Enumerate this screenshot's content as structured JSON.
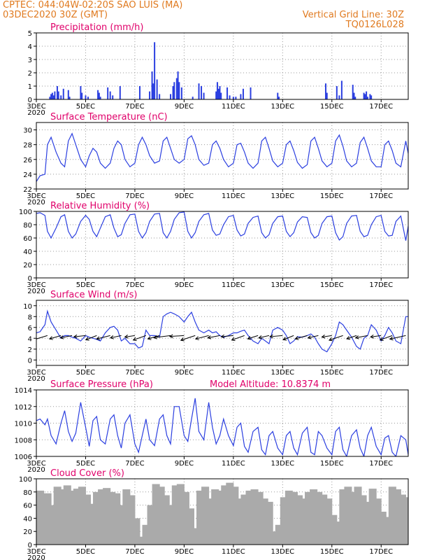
{
  "header": {
    "line1_left": "CPTEC:    044:04W-02:20S   SAO LUIS (MA)",
    "line2_left": "03DEC2020 30Z (GMT)",
    "line2_right": "Vertical Grid Line: 30Z",
    "line3_right": "TQ0126L028"
  },
  "colors": {
    "header": "#e07a1f",
    "panel_title": "#e0006a",
    "line": "#2b3fe0",
    "cloud_bar": "#aaaaaa",
    "wind_arrow": "#000000"
  },
  "x_axis": {
    "tick_labels": [
      "3DEC",
      "5DEC",
      "7DEC",
      "9DEC",
      "11DEC",
      "13DEC",
      "15DEC",
      "17DEC"
    ],
    "year_label": "2020"
  },
  "chart_data": [
    {
      "id": "precip",
      "type": "bar",
      "title": "Precipitation (mm/h)",
      "ylim": [
        0,
        5
      ],
      "yticks": [
        "0",
        "1",
        "2",
        "3",
        "4",
        "5"
      ],
      "xlim_days": [
        3,
        18.1
      ],
      "grid": true,
      "x": [
        3.55,
        3.6,
        3.65,
        3.7,
        3.75,
        3.85,
        3.9,
        4.0,
        4.1,
        4.3,
        4.35,
        4.8,
        4.85,
        5.0,
        5.1,
        5.5,
        5.55,
        5.6,
        5.9,
        6.0,
        6.1,
        6.4,
        7.2,
        7.6,
        7.7,
        7.75,
        7.8,
        7.9,
        8.0,
        8.45,
        8.55,
        8.6,
        8.7,
        8.75,
        8.8,
        8.9,
        9.35,
        9.6,
        9.7,
        9.8,
        10.3,
        10.35,
        10.4,
        10.45,
        10.5,
        10.75,
        10.85,
        11.0,
        11.1,
        11.3,
        11.4,
        11.7,
        12.8,
        12.85,
        14.75,
        14.8,
        15.2,
        15.3,
        15.4,
        15.85,
        15.9,
        15.95,
        16.3,
        16.35,
        16.4,
        16.45,
        16.55,
        16.6
      ],
      "values": [
        0.2,
        0.4,
        0.5,
        0.3,
        0.6,
        1.0,
        0.6,
        0.3,
        0.8,
        0.7,
        0.2,
        1.0,
        0.5,
        0.3,
        0.2,
        0.7,
        0.5,
        0.2,
        0.9,
        0.6,
        0.3,
        1.0,
        1.0,
        0.6,
        2.1,
        1.2,
        4.3,
        1.5,
        0.4,
        0.4,
        1.0,
        1.3,
        1.6,
        2.1,
        1.3,
        0.9,
        0.2,
        1.2,
        1.0,
        0.5,
        0.6,
        1.3,
        0.8,
        1.0,
        0.5,
        0.9,
        0.3,
        0.2,
        0.2,
        0.4,
        0.8,
        0.9,
        0.5,
        0.2,
        1.2,
        0.5,
        1.0,
        0.3,
        1.4,
        1.1,
        0.5,
        0.2,
        0.5,
        0.4,
        0.6,
        0.2,
        0.4,
        0.3
      ]
    },
    {
      "id": "temp",
      "type": "line",
      "title": "Surface Temperature (nC)",
      "ylim": [
        22,
        31
      ],
      "yticks": [
        "22",
        "24",
        "26",
        "28",
        "30"
      ],
      "xlim_days": [
        3,
        18.1
      ],
      "grid": true,
      "x": [
        3,
        3.15,
        3.35,
        3.45,
        3.6,
        3.8,
        4.0,
        4.15,
        4.3,
        4.45,
        4.6,
        4.8,
        5.0,
        5.15,
        5.3,
        5.45,
        5.6,
        5.8,
        6.0,
        6.15,
        6.3,
        6.45,
        6.6,
        6.8,
        7.0,
        7.15,
        7.3,
        7.45,
        7.6,
        7.8,
        8.0,
        8.15,
        8.3,
        8.45,
        8.6,
        8.8,
        9.0,
        9.15,
        9.3,
        9.45,
        9.6,
        9.8,
        10.0,
        10.15,
        10.3,
        10.45,
        10.6,
        10.8,
        11.0,
        11.15,
        11.3,
        11.45,
        11.6,
        11.8,
        12.0,
        12.15,
        12.3,
        12.45,
        12.6,
        12.8,
        13.0,
        13.15,
        13.3,
        13.45,
        13.6,
        13.8,
        14.0,
        14.15,
        14.3,
        14.45,
        14.6,
        14.8,
        15.0,
        15.15,
        15.3,
        15.45,
        15.6,
        15.8,
        16.0,
        16.15,
        16.3,
        16.45,
        16.6,
        16.8,
        17.0,
        17.15,
        17.3,
        17.45,
        17.6,
        17.8,
        18.0,
        18.1
      ],
      "values": [
        23.0,
        23.8,
        24.0,
        28.0,
        29.0,
        27.0,
        25.5,
        25.0,
        28.5,
        29.5,
        28.0,
        26.0,
        25.0,
        26.5,
        27.5,
        27.0,
        25.5,
        24.8,
        25.5,
        27.5,
        28.5,
        28.0,
        26.0,
        25.0,
        25.5,
        28.0,
        29.0,
        28.0,
        26.5,
        25.5,
        25.8,
        28.5,
        29.0,
        27.5,
        26.0,
        25.5,
        26.0,
        28.8,
        29.2,
        28.0,
        26.0,
        25.2,
        25.5,
        28.0,
        28.5,
        27.5,
        26.0,
        25.0,
        25.5,
        28.0,
        28.2,
        27.0,
        25.5,
        24.8,
        25.5,
        28.5,
        29.0,
        27.5,
        25.8,
        25.0,
        25.5,
        28.0,
        28.5,
        27.2,
        25.6,
        24.8,
        25.3,
        28.5,
        29.0,
        27.5,
        25.8,
        25.0,
        25.5,
        28.5,
        29.3,
        27.8,
        25.8,
        25.0,
        25.5,
        28.3,
        29.0,
        27.5,
        25.8,
        25.0,
        25.0,
        28.0,
        28.5,
        27.2,
        25.5,
        25.0,
        28.5,
        26.8
      ]
    },
    {
      "id": "rh",
      "type": "line",
      "title": "Relative Humidity (%)",
      "ylim": [
        0,
        100
      ],
      "yticks": [
        "0",
        "20",
        "40",
        "60",
        "80",
        "100"
      ],
      "xlim_days": [
        3,
        18.1
      ],
      "grid": true,
      "x": [
        3,
        3.15,
        3.35,
        3.45,
        3.6,
        3.8,
        4.0,
        4.15,
        4.3,
        4.45,
        4.6,
        4.8,
        5.0,
        5.15,
        5.3,
        5.45,
        5.6,
        5.8,
        6.0,
        6.15,
        6.3,
        6.45,
        6.6,
        6.8,
        7.0,
        7.15,
        7.3,
        7.45,
        7.6,
        7.8,
        8.0,
        8.15,
        8.3,
        8.45,
        8.6,
        8.8,
        9.0,
        9.15,
        9.3,
        9.45,
        9.6,
        9.8,
        10.0,
        10.15,
        10.3,
        10.45,
        10.6,
        10.8,
        11.0,
        11.15,
        11.3,
        11.45,
        11.6,
        11.8,
        12.0,
        12.15,
        12.3,
        12.45,
        12.6,
        12.8,
        13.0,
        13.15,
        13.3,
        13.45,
        13.6,
        13.8,
        14.0,
        14.15,
        14.3,
        14.45,
        14.6,
        14.8,
        15.0,
        15.15,
        15.3,
        15.45,
        15.6,
        15.8,
        16.0,
        16.15,
        16.3,
        16.45,
        16.6,
        16.8,
        17.0,
        17.15,
        17.3,
        17.45,
        17.6,
        17.8,
        18.0,
        18.1
      ],
      "values": [
        97,
        98,
        94,
        70,
        60,
        75,
        92,
        95,
        70,
        60,
        66,
        85,
        94,
        88,
        70,
        62,
        75,
        92,
        95,
        75,
        62,
        65,
        82,
        95,
        96,
        70,
        60,
        68,
        85,
        96,
        97,
        68,
        60,
        70,
        88,
        98,
        99,
        70,
        60,
        68,
        85,
        95,
        97,
        72,
        64,
        66,
        80,
        92,
        94,
        72,
        63,
        66,
        82,
        91,
        93,
        68,
        60,
        65,
        82,
        92,
        93,
        70,
        62,
        68,
        84,
        92,
        91,
        68,
        60,
        64,
        82,
        92,
        93,
        68,
        57,
        62,
        82,
        93,
        94,
        70,
        62,
        64,
        80,
        92,
        94,
        70,
        63,
        64,
        85,
        93,
        56,
        78
      ]
    },
    {
      "id": "wind",
      "type": "line",
      "title": "Surface Wind (m/s)",
      "ylim": [
        -1,
        11
      ],
      "yticks": [
        "0",
        "2",
        "4",
        "6",
        "8",
        "10"
      ],
      "xlim_days": [
        3,
        18.1
      ],
      "grid": true,
      "x": [
        3,
        3.15,
        3.35,
        3.45,
        3.6,
        3.8,
        4.0,
        4.15,
        4.3,
        4.45,
        4.6,
        4.8,
        5.0,
        5.15,
        5.3,
        5.45,
        5.6,
        5.8,
        6.0,
        6.15,
        6.3,
        6.45,
        6.6,
        6.8,
        7.0,
        7.15,
        7.3,
        7.45,
        7.6,
        7.8,
        8.0,
        8.15,
        8.3,
        8.45,
        8.6,
        8.8,
        9.0,
        9.15,
        9.3,
        9.45,
        9.6,
        9.8,
        10.0,
        10.15,
        10.3,
        10.45,
        10.6,
        10.8,
        11.0,
        11.15,
        11.3,
        11.45,
        11.6,
        11.8,
        12.0,
        12.15,
        12.3,
        12.45,
        12.6,
        12.8,
        13.0,
        13.15,
        13.3,
        13.45,
        13.6,
        13.8,
        14.0,
        14.15,
        14.3,
        14.45,
        14.6,
        14.8,
        15.0,
        15.15,
        15.3,
        15.45,
        15.6,
        15.8,
        16.0,
        16.15,
        16.3,
        16.45,
        16.6,
        16.8,
        17.0,
        17.15,
        17.3,
        17.45,
        17.6,
        17.8,
        18.0,
        18.1
      ],
      "values": [
        5,
        5.2,
        6.5,
        9,
        7,
        5.5,
        4,
        4.5,
        4.5,
        4.2,
        4,
        3.5,
        4.5,
        4.2,
        4,
        3.8,
        3.5,
        5,
        6,
        6.2,
        5.5,
        3.5,
        4,
        3,
        3,
        2.2,
        2.5,
        5.5,
        4.5,
        4.5,
        4.2,
        8,
        8.5,
        8.8,
        8.5,
        8,
        7,
        8,
        8.8,
        7,
        5.5,
        5,
        5.5,
        5,
        5.2,
        4.5,
        4.2,
        4.5,
        5,
        5,
        5.3,
        5.5,
        4.5,
        3.5,
        3,
        4,
        3.5,
        3,
        5.5,
        6,
        5.5,
        4.5,
        3,
        3.5,
        4.3,
        4.2,
        4.5,
        4.8,
        4.2,
        3,
        2,
        1.5,
        3,
        4.5,
        7,
        6.5,
        5.5,
        4.2,
        2.5,
        2,
        4,
        4.5,
        6.5,
        5.5,
        3.5,
        4.5,
        6,
        5,
        3.5,
        3,
        8,
        8
      ]
    },
    {
      "id": "pressure",
      "type": "line",
      "title": "Surface Pressure (hPa)",
      "annotation": "Model Altitude: 10.8374 m",
      "ylim": [
        1006,
        1014
      ],
      "yticks": [
        "1006",
        "1008",
        "1010",
        "1012",
        "1014"
      ],
      "xlim_days": [
        3,
        18.1
      ],
      "grid": true,
      "x": [
        3,
        3.15,
        3.35,
        3.45,
        3.6,
        3.8,
        4.0,
        4.15,
        4.3,
        4.45,
        4.6,
        4.8,
        5.0,
        5.15,
        5.3,
        5.45,
        5.6,
        5.8,
        6.0,
        6.15,
        6.3,
        6.45,
        6.6,
        6.8,
        7.0,
        7.15,
        7.3,
        7.45,
        7.6,
        7.8,
        8.0,
        8.15,
        8.3,
        8.45,
        8.6,
        8.8,
        9.0,
        9.15,
        9.3,
        9.45,
        9.6,
        9.8,
        10.0,
        10.15,
        10.3,
        10.45,
        10.6,
        10.8,
        11.0,
        11.15,
        11.3,
        11.45,
        11.6,
        11.8,
        12.0,
        12.15,
        12.3,
        12.45,
        12.6,
        12.8,
        13.0,
        13.15,
        13.3,
        13.45,
        13.6,
        13.8,
        14.0,
        14.15,
        14.3,
        14.45,
        14.6,
        14.8,
        15.0,
        15.15,
        15.3,
        15.45,
        15.6,
        15.8,
        16.0,
        16.15,
        16.3,
        16.45,
        16.6,
        16.8,
        17.0,
        17.15,
        17.3,
        17.45,
        17.6,
        17.8,
        18.0,
        18.1
      ],
      "values": [
        1010.3,
        1010.5,
        1009.8,
        1010.5,
        1008.5,
        1007.5,
        1010,
        1011.5,
        1009,
        1007.8,
        1008.8,
        1012.5,
        1009.5,
        1007.2,
        1010.3,
        1010.8,
        1008,
        1007.5,
        1010.5,
        1011,
        1008.5,
        1007,
        1010,
        1011,
        1007.5,
        1006.5,
        1008.5,
        1010.5,
        1008,
        1007.3,
        1010.5,
        1011,
        1008.5,
        1007.5,
        1012,
        1012,
        1008.5,
        1007.8,
        1010.5,
        1013,
        1009,
        1008,
        1012.5,
        1009.5,
        1007.5,
        1008.5,
        1010.5,
        1008.5,
        1007.3,
        1009.5,
        1010,
        1007.2,
        1006.5,
        1009,
        1009.5,
        1006.8,
        1006.2,
        1008.5,
        1009,
        1007,
        1006.2,
        1008.5,
        1009,
        1007,
        1006.2,
        1008.8,
        1009.5,
        1006.5,
        1006.2,
        1009,
        1008.5,
        1007,
        1006.2,
        1009,
        1009.5,
        1006.8,
        1006,
        1008.5,
        1009.2,
        1007,
        1006,
        1008.5,
        1009.5,
        1007.2,
        1006.2,
        1008.2,
        1008.5,
        1006.5,
        1006,
        1008.5,
        1008,
        1006.2
      ]
    },
    {
      "id": "cloud",
      "type": "bar",
      "title": "Cloud Cover (%)",
      "ylim": [
        0,
        100
      ],
      "yticks": [
        "0",
        "20",
        "40",
        "60",
        "80",
        "100"
      ],
      "xlim_days": [
        3,
        18.1
      ],
      "grid": true,
      "x": [
        3,
        3.3,
        3.5,
        3.7,
        3.9,
        4.1,
        4.3,
        4.5,
        4.7,
        4.9,
        5.1,
        5.3,
        5.5,
        5.7,
        5.9,
        6.1,
        6.3,
        6.5,
        6.7,
        6.9,
        7.1,
        7.3,
        7.5,
        7.7,
        7.9,
        8.1,
        8.3,
        8.5,
        8.7,
        8.9,
        9.1,
        9.3,
        9.5,
        9.7,
        9.9,
        10.1,
        10.3,
        10.5,
        10.7,
        10.9,
        11.1,
        11.3,
        11.5,
        11.7,
        11.9,
        12.1,
        12.3,
        12.5,
        12.7,
        12.9,
        13.1,
        13.3,
        13.5,
        13.7,
        13.9,
        14.1,
        14.3,
        14.5,
        14.7,
        14.9,
        15.1,
        15.3,
        15.5,
        15.7,
        15.9,
        16.1,
        16.3,
        16.5,
        16.7,
        16.9,
        17.1,
        17.3,
        17.5,
        17.7,
        17.9,
        18.1
      ],
      "values": [
        82,
        78,
        60,
        88,
        84,
        90,
        82,
        85,
        88,
        76,
        62,
        80,
        84,
        86,
        80,
        78,
        60,
        84,
        75,
        40,
        12,
        30,
        60,
        92,
        88,
        75,
        60,
        90,
        92,
        80,
        55,
        25,
        82,
        88,
        70,
        84,
        82,
        90,
        94,
        88,
        70,
        76,
        82,
        84,
        80,
        70,
        65,
        20,
        30,
        72,
        82,
        80,
        75,
        70,
        80,
        84,
        80,
        76,
        70,
        45,
        35,
        84,
        88,
        80,
        88,
        75,
        65,
        85,
        70,
        50,
        42,
        88,
        84,
        76,
        72,
        40
      ]
    }
  ]
}
